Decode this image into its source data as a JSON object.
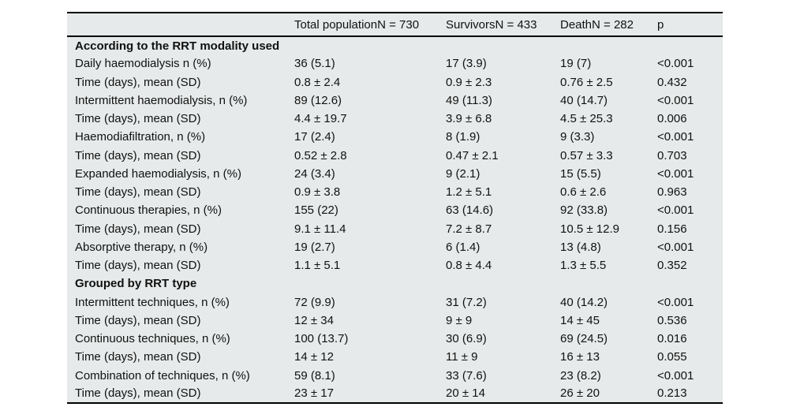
{
  "colors": {
    "table_background": "#e7eaea",
    "rule": "#000000",
    "page_background": "#ffffff",
    "text": "#111111"
  },
  "table": {
    "columns": [
      "",
      "Total populationN = 730",
      "SurvivorsN = 433",
      "DeathN = 282",
      "p"
    ],
    "column_keys": [
      "label",
      "total",
      "survivors",
      "death",
      "p"
    ],
    "rows": [
      {
        "type": "section",
        "label": "According to the RRT modality used"
      },
      {
        "type": "data",
        "label": "Daily haemodialysis n (%)",
        "values": [
          "36 (5.1)",
          "17 (3.9)",
          "19 (7)",
          "<0.001"
        ]
      },
      {
        "type": "data",
        "label": "Time (days), mean (SD)",
        "values": [
          "0.8 ± 2.4",
          "0.9 ± 2.3",
          "0.76 ± 2.5",
          "0.432"
        ]
      },
      {
        "type": "data",
        "label": "Intermittent haemodialysis, n (%)",
        "values": [
          "89 (12.6)",
          "49 (11.3)",
          "40 (14.7)",
          "<0.001"
        ]
      },
      {
        "type": "data",
        "label": "Time (days), mean (SD)",
        "values": [
          "4.4 ± 19.7",
          "3.9 ± 6.8",
          "4.5 ± 25.3",
          "0.006"
        ]
      },
      {
        "type": "data",
        "label": "Haemodiafiltration, n (%)",
        "values": [
          "17 (2.4)",
          "8 (1.9)",
          "9 (3.3)",
          "<0.001"
        ]
      },
      {
        "type": "data",
        "label": "Time (days), mean (SD)",
        "values": [
          "0.52 ± 2.8",
          "0.47 ± 2.1",
          "0.57 ± 3.3",
          "0.703"
        ]
      },
      {
        "type": "data",
        "label": "Expanded haemodialysis, n (%)",
        "values": [
          "24 (3.4)",
          "9 (2.1)",
          "15 (5.5)",
          "<0.001"
        ]
      },
      {
        "type": "data",
        "label": "Time (days), mean (SD)",
        "values": [
          "0.9 ± 3.8",
          "1.2 ± 5.1",
          "0.6 ± 2.6",
          "0.963"
        ]
      },
      {
        "type": "data",
        "label": "Continuous therapies, n (%)",
        "values": [
          "155 (22)",
          "63 (14.6)",
          "92 (33.8)",
          "<0.001"
        ]
      },
      {
        "type": "data",
        "label": "Time (days), mean (SD)",
        "values": [
          "9.1 ± 11.4",
          "7.2 ± 8.7",
          "10.5 ± 12.9",
          "0.156"
        ]
      },
      {
        "type": "data",
        "label": "Absorptive therapy, n (%)",
        "values": [
          "19 (2.7)",
          "6 (1.4)",
          "13 (4.8)",
          "<0.001"
        ]
      },
      {
        "type": "data",
        "label": "Time (days), mean (SD)",
        "values": [
          "1.1 ± 5.1",
          "0.8 ± 4.4",
          "1.3 ± 5.5",
          "0.352"
        ]
      },
      {
        "type": "section",
        "label": "Grouped by RRT type"
      },
      {
        "type": "data",
        "label": "Intermittent techniques, n (%)",
        "values": [
          "72 (9.9)",
          "31 (7.2)",
          "40 (14.2)",
          "<0.001"
        ]
      },
      {
        "type": "data",
        "label": "Time (days), mean (SD)",
        "values": [
          "12 ± 34",
          "9 ± 9",
          "14 ± 45",
          "0.536"
        ]
      },
      {
        "type": "data",
        "label": "Continuous techniques, n (%)",
        "values": [
          "100 (13.7)",
          "30 (6.9)",
          "69 (24.5)",
          "0.016"
        ]
      },
      {
        "type": "data",
        "label": "Time (days), mean (SD)",
        "values": [
          "14 ± 12",
          "11 ± 9",
          "16 ± 13",
          "0.055"
        ]
      },
      {
        "type": "data",
        "label": "Combination of techniques, n (%)",
        "values": [
          "59 (8.1)",
          "33 (7.6)",
          "23 (8.2)",
          "<0.001"
        ]
      },
      {
        "type": "data",
        "label": "Time (days), mean (SD)",
        "values": [
          "23 ± 17",
          "20 ± 14",
          "26 ± 20",
          "0.213"
        ]
      }
    ]
  }
}
